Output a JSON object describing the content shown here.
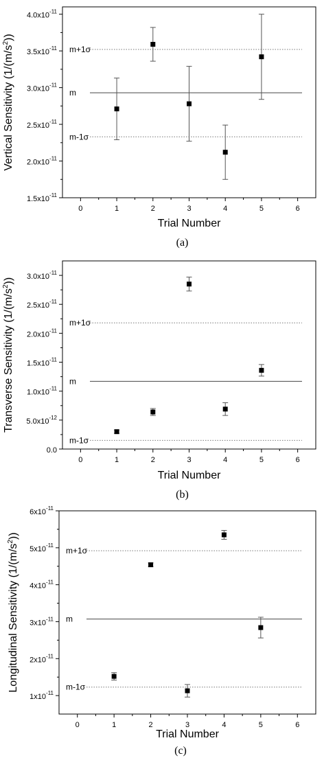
{
  "chart_data": [
    {
      "type": "scatter",
      "caption": "(a)",
      "xlabel": "Trial Number",
      "ylabel": "Vertical Sensitivity (1/(m/s",
      "ylabel_sup": "2",
      "ylabel_end": "))",
      "xlim": [
        -0.5,
        6.5
      ],
      "ylim": [
        1.5,
        4.1
      ],
      "xticks": [
        "0",
        "1",
        "2",
        "3",
        "4",
        "5",
        "6"
      ],
      "yticks": [
        {
          "v": 1.5,
          "mant": "1.5x10",
          "exp": "-11"
        },
        {
          "v": 2.0,
          "mant": "2.0x10",
          "exp": "-11"
        },
        {
          "v": 2.5,
          "mant": "2.5x10",
          "exp": "-11"
        },
        {
          "v": 3.0,
          "mant": "3.0x10",
          "exp": "-11"
        },
        {
          "v": 3.5,
          "mant": "3.5x10",
          "exp": "-11"
        },
        {
          "v": 4.0,
          "mant": "4.0x10",
          "exp": "-11"
        }
      ],
      "points": [
        {
          "x": 1,
          "y": 2.71,
          "lo": 2.29,
          "hi": 3.13
        },
        {
          "x": 2,
          "y": 3.59,
          "lo": 3.36,
          "hi": 3.82
        },
        {
          "x": 3,
          "y": 2.78,
          "lo": 2.27,
          "hi": 3.29
        },
        {
          "x": 4,
          "y": 2.12,
          "lo": 1.75,
          "hi": 2.49
        },
        {
          "x": 5,
          "y": 3.42,
          "lo": 2.84,
          "hi": 4.0
        }
      ],
      "reference_lines": [
        {
          "label": "m+1σ",
          "y": 3.52,
          "style": "dotted"
        },
        {
          "label": "m",
          "y": 2.93,
          "style": "solid"
        },
        {
          "label": "m-1σ",
          "y": 2.33,
          "style": "dotted"
        }
      ]
    },
    {
      "type": "scatter",
      "caption": "(b)",
      "xlabel": "Trial Number",
      "ylabel": "Transverse Sensitivity (1/(m/s",
      "ylabel_sup": "2",
      "ylabel_end": "))",
      "xlim": [
        -0.5,
        6.5
      ],
      "ylim": [
        0.0,
        3.25
      ],
      "xticks": [
        "0",
        "1",
        "2",
        "3",
        "4",
        "5",
        "6"
      ],
      "yticks": [
        {
          "v": 0.0,
          "mant": "0.0",
          "exp": ""
        },
        {
          "v": 0.5,
          "mant": "5.0x10",
          "exp": "-12"
        },
        {
          "v": 1.0,
          "mant": "1.0x10",
          "exp": "-11"
        },
        {
          "v": 1.5,
          "mant": "1.5x10",
          "exp": "-11"
        },
        {
          "v": 2.0,
          "mant": "2.0x10",
          "exp": "-11"
        },
        {
          "v": 2.5,
          "mant": "2.5x10",
          "exp": "-11"
        },
        {
          "v": 3.0,
          "mant": "3.0x10",
          "exp": "-11"
        }
      ],
      "points": [
        {
          "x": 1,
          "y": 0.3,
          "lo": 0.27,
          "hi": 0.33
        },
        {
          "x": 2,
          "y": 0.64,
          "lo": 0.58,
          "hi": 0.7
        },
        {
          "x": 3,
          "y": 2.85,
          "lo": 2.73,
          "hi": 2.97
        },
        {
          "x": 4,
          "y": 0.69,
          "lo": 0.58,
          "hi": 0.8
        },
        {
          "x": 5,
          "y": 1.36,
          "lo": 1.26,
          "hi": 1.46
        }
      ],
      "reference_lines": [
        {
          "label": "m+1σ",
          "y": 2.18,
          "style": "dotted"
        },
        {
          "label": "m",
          "y": 1.17,
          "style": "solid"
        },
        {
          "label": "m-1σ",
          "y": 0.15,
          "style": "dotted"
        }
      ]
    },
    {
      "type": "scatter",
      "caption": "(c)",
      "xlabel": "Trial Number",
      "ylabel": "Longitudinal Sensitivity (1/(m/s",
      "ylabel_sup": "2",
      "ylabel_end": "))",
      "xlim": [
        -0.5,
        6.5
      ],
      "ylim": [
        0.5,
        6.0
      ],
      "xticks": [
        "0",
        "1",
        "2",
        "3",
        "4",
        "5",
        "6"
      ],
      "yticks": [
        {
          "v": 1.0,
          "mant": "1x10",
          "exp": "-11"
        },
        {
          "v": 2.0,
          "mant": "2x10",
          "exp": "-11"
        },
        {
          "v": 3.0,
          "mant": "3x10",
          "exp": "-11"
        },
        {
          "v": 4.0,
          "mant": "4x10",
          "exp": "-11"
        },
        {
          "v": 5.0,
          "mant": "5x10",
          "exp": "-11"
        },
        {
          "v": 6.0,
          "mant": "6x10",
          "exp": "-11"
        }
      ],
      "points": [
        {
          "x": 1,
          "y": 1.52,
          "lo": 1.42,
          "hi": 1.62
        },
        {
          "x": 2,
          "y": 4.54,
          "lo": 4.49,
          "hi": 4.59
        },
        {
          "x": 3,
          "y": 1.13,
          "lo": 0.96,
          "hi": 1.3
        },
        {
          "x": 4,
          "y": 5.35,
          "lo": 5.23,
          "hi": 5.47
        },
        {
          "x": 5,
          "y": 2.84,
          "lo": 2.56,
          "hi": 3.12
        }
      ],
      "reference_lines": [
        {
          "label": "m+1σ",
          "y": 4.92,
          "style": "dotted"
        },
        {
          "label": "m",
          "y": 3.07,
          "style": "solid"
        },
        {
          "label": "m-1σ",
          "y": 1.23,
          "style": "dotted"
        }
      ]
    }
  ]
}
